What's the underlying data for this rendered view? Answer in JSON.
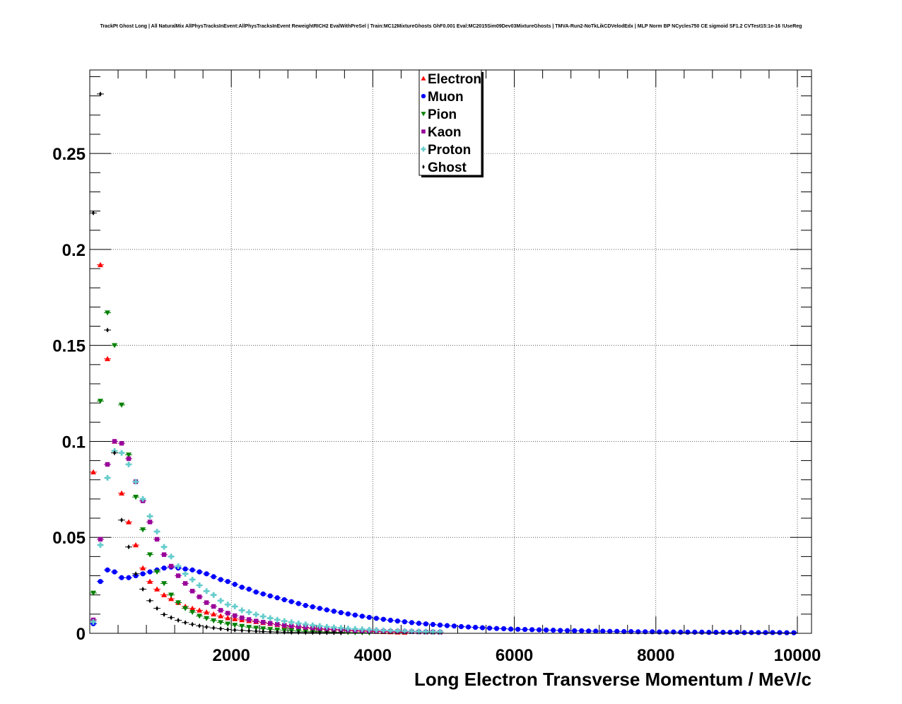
{
  "chart_data": {
    "type": "scatter",
    "title": "TrackPt Ghost Long | All NaturalMix AllPhysTracksInEvent:AllPhysTracksInEvent ReweightRICH2 EvalWithPreSel | Train:MC12MixtureGhosts GhF0.001 Eval:MC2015Sim09Dev03MixtureGhosts | TMVA-Run2-NoTkLikCDVelodEdx | MLP Norm BP NCycles750 CE sigmoid SF1.2 CVTest15:1e-16 !UseReg",
    "xlabel": "Long Electron Transverse Momentum / MeV/c",
    "ylabel": "",
    "xlim": [
      0,
      10200
    ],
    "ylim": [
      0,
      0.2935
    ],
    "xticks": [
      2000,
      4000,
      6000,
      8000,
      10000
    ],
    "xtick_labels": [
      "2000",
      "4000",
      "6000",
      "8000",
      "10000"
    ],
    "yticks": [
      0,
      0.05,
      0.1,
      0.15,
      0.2,
      0.25
    ],
    "ytick_labels": [
      "0",
      "0.05",
      "0.1",
      "0.15",
      "0.2",
      "0.25"
    ],
    "grid": true,
    "legend_position": "top-center",
    "series": [
      {
        "name": "Electron",
        "color": "#ff0000",
        "marker": "triangle-up",
        "x": [
          50,
          150,
          250,
          350,
          450,
          550,
          650,
          750,
          850,
          950,
          1050,
          1150,
          1250,
          1350,
          1450,
          1550,
          1650,
          1750,
          1850,
          1950,
          2050,
          2150,
          2250,
          2350,
          2450,
          2550,
          2650,
          2750,
          2850,
          2950,
          3050,
          3150,
          3250,
          3350,
          3450,
          3550,
          3650,
          3750,
          3850,
          3950,
          4050,
          4150,
          4250,
          4350,
          4450
        ],
        "y": [
          0.084,
          0.192,
          0.143,
          0.1,
          0.073,
          0.058,
          0.046,
          0.034,
          0.027,
          0.023,
          0.02,
          0.018,
          0.016,
          0.014,
          0.013,
          0.012,
          0.011,
          0.01,
          0.009,
          0.008,
          0.0075,
          0.007,
          0.0065,
          0.006,
          0.0055,
          0.005,
          0.0045,
          0.004,
          0.0036,
          0.0032,
          0.0028,
          0.0025,
          0.0022,
          0.002,
          0.0018,
          0.0016,
          0.0014,
          0.0012,
          0.0011,
          0.001,
          0.0009,
          0.0008,
          0.0007,
          0.0006,
          0.0005
        ]
      },
      {
        "name": "Muon",
        "color": "#0000ff",
        "marker": "circle",
        "x": [
          50,
          150,
          250,
          350,
          450,
          550,
          650,
          750,
          850,
          950,
          1050,
          1150,
          1250,
          1350,
          1450,
          1550,
          1650,
          1750,
          1850,
          1950,
          2050,
          2150,
          2250,
          2350,
          2450,
          2550,
          2650,
          2750,
          2850,
          2950,
          3050,
          3150,
          3250,
          3350,
          3450,
          3550,
          3650,
          3750,
          3850,
          3950,
          4050,
          4150,
          4250,
          4350,
          4450,
          4550,
          4650,
          4750,
          4850,
          4950,
          5050,
          5150,
          5250,
          5350,
          5450,
          5550,
          5650,
          5750,
          5850,
          5950,
          6050,
          6150,
          6250,
          6350,
          6450,
          6550,
          6650,
          6750,
          6850,
          6950,
          7050,
          7150,
          7250,
          7350,
          7450,
          7550,
          7650,
          7750,
          7850,
          7950,
          8050,
          8150,
          8250,
          8350,
          8450,
          8550,
          8650,
          8750,
          8850,
          8950,
          9050,
          9150,
          9250,
          9350,
          9450,
          9550,
          9650,
          9750,
          9850,
          9950
        ],
        "y": [
          0.005,
          0.027,
          0.033,
          0.032,
          0.029,
          0.029,
          0.03,
          0.031,
          0.032,
          0.033,
          0.034,
          0.0345,
          0.034,
          0.0335,
          0.033,
          0.032,
          0.031,
          0.0295,
          0.028,
          0.027,
          0.0255,
          0.024,
          0.023,
          0.0215,
          0.0205,
          0.0195,
          0.0185,
          0.0175,
          0.0165,
          0.0155,
          0.0145,
          0.0138,
          0.013,
          0.0122,
          0.0115,
          0.0108,
          0.0101,
          0.0095,
          0.0089,
          0.0083,
          0.0078,
          0.0073,
          0.0068,
          0.0064,
          0.006,
          0.0056,
          0.0052,
          0.0049,
          0.0046,
          0.0043,
          0.004,
          0.0038,
          0.0035,
          0.0033,
          0.0031,
          0.0029,
          0.0027,
          0.0025,
          0.0024,
          0.0022,
          0.0021,
          0.002,
          0.0019,
          0.0018,
          0.0017,
          0.0016,
          0.0015,
          0.0014,
          0.0013,
          0.0013,
          0.0012,
          0.0011,
          0.0011,
          0.001,
          0.001,
          0.0009,
          0.0009,
          0.0008,
          0.0008,
          0.0008,
          0.0007,
          0.0007,
          0.0007,
          0.0006,
          0.0006,
          0.0006,
          0.0006,
          0.0005,
          0.0005,
          0.0005,
          0.0005,
          0.0005,
          0.0004,
          0.0004,
          0.0004,
          0.0004,
          0.0004,
          0.0004,
          0.0003,
          0.0003
        ]
      },
      {
        "name": "Pion",
        "color": "#008000",
        "marker": "triangle-down",
        "x": [
          50,
          150,
          250,
          350,
          450,
          550,
          650,
          750,
          850,
          950,
          1050,
          1150,
          1250,
          1350,
          1450,
          1550,
          1650,
          1750,
          1850,
          1950,
          2050,
          2150,
          2250,
          2350,
          2450,
          2550,
          2650,
          2750,
          2850,
          2950,
          3050,
          3150,
          3250,
          3350,
          3450,
          3550,
          3650,
          3750,
          3850,
          3950
        ],
        "y": [
          0.021,
          0.121,
          0.167,
          0.15,
          0.119,
          0.093,
          0.071,
          0.054,
          0.041,
          0.032,
          0.026,
          0.02,
          0.016,
          0.013,
          0.011,
          0.009,
          0.0078,
          0.0066,
          0.0057,
          0.0049,
          0.0043,
          0.0037,
          0.0032,
          0.0028,
          0.0024,
          0.0021,
          0.0018,
          0.0016,
          0.0014,
          0.0012,
          0.001,
          0.0009,
          0.0008,
          0.0007,
          0.0006,
          0.0005,
          0.0005,
          0.0004,
          0.0004,
          0.0003
        ]
      },
      {
        "name": "Kaon",
        "color": "#990099",
        "marker": "square",
        "x": [
          50,
          150,
          250,
          350,
          450,
          550,
          650,
          750,
          850,
          950,
          1050,
          1150,
          1250,
          1350,
          1450,
          1550,
          1650,
          1750,
          1850,
          1950,
          2050,
          2150,
          2250,
          2350,
          2450,
          2550,
          2650,
          2750,
          2850,
          2950,
          3050,
          3150,
          3250,
          3350,
          3450,
          3550,
          3650,
          3750,
          3850,
          3950,
          4050,
          4150,
          4250,
          4350,
          4450,
          4550,
          4650,
          4750,
          4850,
          4950
        ],
        "y": [
          0.007,
          0.049,
          0.088,
          0.1,
          0.099,
          0.091,
          0.079,
          0.069,
          0.058,
          0.049,
          0.041,
          0.035,
          0.03,
          0.026,
          0.022,
          0.019,
          0.016,
          0.014,
          0.012,
          0.0105,
          0.0092,
          0.0081,
          0.0072,
          0.0064,
          0.0058,
          0.0052,
          0.0047,
          0.0042,
          0.0038,
          0.0034,
          0.0031,
          0.0028,
          0.0025,
          0.0023,
          0.0021,
          0.0019,
          0.0017,
          0.0015,
          0.0014,
          0.0013,
          0.0012,
          0.0011,
          0.001,
          0.0009,
          0.0008,
          0.0008,
          0.0007,
          0.0006,
          0.0006,
          0.0005
        ]
      },
      {
        "name": "Proton",
        "color": "#66cccc",
        "marker": "cross",
        "x": [
          50,
          150,
          250,
          350,
          450,
          550,
          650,
          750,
          850,
          950,
          1050,
          1150,
          1250,
          1350,
          1450,
          1550,
          1650,
          1750,
          1850,
          1950,
          2050,
          2150,
          2250,
          2350,
          2450,
          2550,
          2650,
          2750,
          2850,
          2950,
          3050,
          3150,
          3250,
          3350,
          3450,
          3550,
          3650,
          3750,
          3850,
          3950,
          4050,
          4150,
          4250,
          4350,
          4450,
          4550,
          4650,
          4750,
          4850,
          4950
        ],
        "y": [
          0.006,
          0.046,
          0.081,
          0.095,
          0.094,
          0.088,
          0.079,
          0.07,
          0.061,
          0.053,
          0.045,
          0.04,
          0.035,
          0.031,
          0.028,
          0.025,
          0.022,
          0.02,
          0.017,
          0.015,
          0.014,
          0.012,
          0.011,
          0.0098,
          0.0088,
          0.0079,
          0.0071,
          0.0064,
          0.0058,
          0.0052,
          0.0047,
          0.0042,
          0.0038,
          0.0034,
          0.0031,
          0.0028,
          0.0025,
          0.0023,
          0.0021,
          0.0019,
          0.0017,
          0.0015,
          0.0014,
          0.0013,
          0.0012,
          0.0011,
          0.001,
          0.0009,
          0.0008,
          0.0008
        ]
      },
      {
        "name": "Ghost",
        "color": "#000000",
        "marker": "diamond",
        "x": [
          50,
          150,
          250,
          350,
          450,
          550,
          650,
          750,
          850,
          950,
          1050,
          1150,
          1250,
          1350,
          1450,
          1550,
          1650,
          1750,
          1850,
          1950,
          2050,
          2150,
          2250,
          2350,
          2450,
          2550,
          2650,
          2750,
          2850,
          2950,
          3050,
          3150,
          3250,
          3350,
          3450,
          3550
        ],
        "y": [
          0.219,
          0.281,
          0.158,
          0.094,
          0.059,
          0.045,
          0.031,
          0.023,
          0.017,
          0.013,
          0.0098,
          0.0082,
          0.0068,
          0.0056,
          0.0047,
          0.0039,
          0.0033,
          0.0028,
          0.0024,
          0.002,
          0.0017,
          0.0015,
          0.0013,
          0.0011,
          0.0009,
          0.0008,
          0.0007,
          0.0006,
          0.0005,
          0.0005,
          0.0004,
          0.0004,
          0.0003,
          0.0003,
          0.0003,
          0.0002
        ]
      }
    ]
  }
}
